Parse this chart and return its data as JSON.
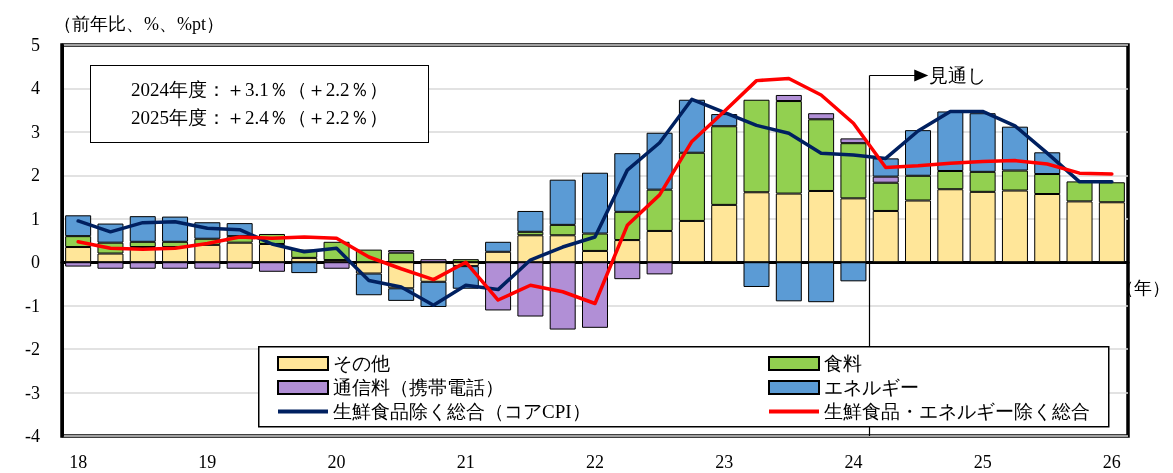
{
  "chart_data": {
    "type": "bar",
    "stacked": true,
    "ylabel": "（前年比、%、%pt）",
    "xlabel": "（年）",
    "x": [
      2018,
      2018.25,
      2018.5,
      2018.75,
      2019,
      2019.25,
      2019.5,
      2019.75,
      2020,
      2020.25,
      2020.5,
      2020.75,
      2021,
      2021.25,
      2021.5,
      2021.75,
      2022,
      2022.25,
      2022.5,
      2022.75,
      2023,
      2023.25,
      2023.5,
      2023.75,
      2024,
      2024.25,
      2024.5,
      2024.75,
      2025,
      2025.25,
      2025.5,
      2025.75,
      2026
    ],
    "xlim": [
      2017.875,
      2026.125
    ],
    "xticks": [
      {
        "value": 2018,
        "label": "18"
      },
      {
        "value": 2019,
        "label": "19"
      },
      {
        "value": 2020,
        "label": "20"
      },
      {
        "value": 2021,
        "label": "21"
      },
      {
        "value": 2022,
        "label": "22"
      },
      {
        "value": 2023,
        "label": "23"
      },
      {
        "value": 2024,
        "label": "24"
      },
      {
        "value": 2025,
        "label": "25"
      },
      {
        "value": 2026,
        "label": "26"
      }
    ],
    "ylim": [
      -4,
      5
    ],
    "yticks": [
      -4,
      -3,
      -2,
      -1,
      0,
      1,
      2,
      3,
      4,
      5
    ],
    "grid": "y",
    "legend": "bottom",
    "marker": "none",
    "series": [
      {
        "name": "その他",
        "color": "#ffe699",
        "values": [
          0.35,
          0.2,
          0.35,
          0.35,
          0.4,
          0.45,
          0.42,
          0.1,
          0.05,
          -0.26,
          -0.6,
          -0.45,
          -0.09,
          0.24,
          0.62,
          0.62,
          0.26,
          0.51,
          0.72,
          0.95,
          1.32,
          1.61,
          1.58,
          1.64,
          1.47,
          1.18,
          1.42,
          1.68,
          1.62,
          1.65,
          1.57,
          1.4,
          1.38
        ]
      },
      {
        "name": "食料",
        "color": "#92d050",
        "values": [
          0.25,
          0.25,
          0.12,
          0.12,
          0.14,
          0.15,
          0.23,
          0.19,
          0.42,
          0.29,
          0.22,
          null,
          0.07,
          null,
          0.08,
          0.24,
          0.4,
          0.65,
          0.95,
          1.57,
          1.81,
          2.13,
          2.13,
          1.65,
          1.27,
          0.65,
          0.57,
          0.42,
          0.46,
          0.46,
          0.46,
          0.46,
          0.46
        ]
      },
      {
        "name": "通信料（携帯電話）",
        "color": "#b18fd6",
        "values": [
          -0.1,
          -0.15,
          -0.15,
          -0.15,
          -0.15,
          -0.15,
          -0.22,
          null,
          -0.15,
          null,
          0.06,
          0.07,
          null,
          -1.11,
          -1.25,
          -1.55,
          -1.51,
          -0.39,
          -0.28,
          null,
          null,
          null,
          0.14,
          0.14,
          0.11,
          0.14,
          null,
          null,
          null,
          null,
          null,
          null,
          null
        ]
      },
      {
        "name": "エネルギー",
        "color": "#5b9bd5",
        "values": [
          0.48,
          0.44,
          0.59,
          0.58,
          0.38,
          0.3,
          null,
          -0.25,
          null,
          -0.5,
          -0.29,
          -0.58,
          -0.52,
          0.23,
          0.48,
          1.04,
          1.4,
          1.35,
          1.31,
          1.22,
          0.28,
          -0.57,
          -0.9,
          -0.92,
          -0.44,
          0.42,
          1.05,
          1.37,
          1.35,
          1.01,
          0.5,
          null,
          null
        ]
      },
      {
        "name": "生鮮食品除く総合（コアCPI）",
        "type": "line",
        "color": "#002060",
        "values": [
          0.95,
          0.7,
          0.91,
          0.93,
          0.78,
          0.75,
          0.42,
          0.24,
          0.32,
          -0.42,
          -0.57,
          -0.99,
          -0.53,
          -0.63,
          0.05,
          0.35,
          0.58,
          2.12,
          2.75,
          3.75,
          3.45,
          3.15,
          2.97,
          2.51,
          2.47,
          2.39,
          3.02,
          3.47,
          3.47,
          3.14,
          2.51,
          1.85,
          1.85
        ]
      },
      {
        "name": "生鮮食品・エネルギー除く総合",
        "type": "line",
        "color": "#ff0000",
        "values": [
          0.47,
          0.32,
          0.3,
          0.32,
          0.43,
          0.58,
          0.55,
          0.58,
          0.55,
          0.12,
          -0.15,
          -0.4,
          0.0,
          -0.87,
          -0.53,
          -0.68,
          -0.95,
          0.85,
          1.55,
          2.78,
          3.47,
          4.18,
          4.23,
          3.85,
          3.2,
          2.18,
          2.22,
          2.28,
          2.32,
          2.34,
          2.26,
          2.05,
          2.03
        ]
      }
    ],
    "ref_lines": [
      {
        "axis": "x",
        "value": 2024.125,
        "label": "見通し",
        "color": "#000000"
      }
    ],
    "annotations": [
      "2024年度：＋3.1％（＋2.2％）",
      "2025年度：＋2.4％（＋2.2％）"
    ]
  }
}
